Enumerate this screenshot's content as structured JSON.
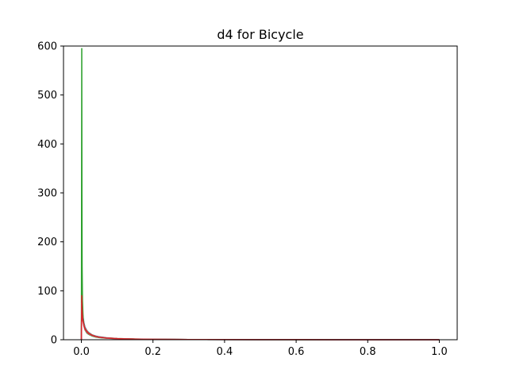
{
  "chart_data": {
    "type": "line",
    "title": "d4 for Bicycle",
    "xlabel": "",
    "ylabel": "",
    "xlim": [
      -0.05,
      1.05
    ],
    "ylim": [
      0,
      600
    ],
    "xticks": [
      0.0,
      0.2,
      0.4,
      0.6,
      0.8,
      1.0
    ],
    "xtick_labels": [
      "0.0",
      "0.2",
      "0.4",
      "0.6",
      "0.8",
      "1.0"
    ],
    "yticks": [
      0,
      100,
      200,
      300,
      400,
      500,
      600
    ],
    "ytick_labels": [
      "0",
      "100",
      "200",
      "300",
      "400",
      "500",
      "600"
    ],
    "grid": false,
    "legend": "none",
    "series": [
      {
        "color": "#1f77b4",
        "x": [
          0.0,
          0.001,
          0.002,
          0.004,
          0.007,
          0.01,
          0.015,
          0.02,
          0.03,
          0.04,
          0.05,
          0.07,
          0.1,
          0.15,
          0.2,
          0.3,
          0.5,
          0.7,
          1.0
        ],
        "y": [
          0,
          130,
          80,
          50,
          35,
          26,
          19,
          15,
          10,
          7.5,
          6,
          4,
          2.5,
          1.5,
          1,
          0.5,
          0.2,
          0.1,
          0.05
        ]
      },
      {
        "color": "#ff7f0e",
        "x": [
          0.0,
          0.001,
          0.002,
          0.004,
          0.007,
          0.01,
          0.015,
          0.02,
          0.03,
          0.04,
          0.05,
          0.07,
          0.1,
          0.15,
          0.2,
          0.3,
          0.5,
          0.7,
          1.0
        ],
        "y": [
          0,
          110,
          70,
          45,
          32,
          24,
          18,
          14,
          9.5,
          7,
          5.5,
          3.8,
          2.4,
          1.4,
          0.9,
          0.45,
          0.2,
          0.1,
          0.05
        ]
      },
      {
        "color": "#9467bd",
        "x": [
          0.0,
          0.001,
          0.002,
          0.004,
          0.007,
          0.01,
          0.015,
          0.02,
          0.03,
          0.04,
          0.05,
          0.07,
          0.1,
          0.15,
          0.2,
          0.3,
          0.5,
          0.7,
          1.0
        ],
        "y": [
          0,
          100,
          65,
          42,
          30,
          23,
          17,
          13,
          9,
          6.8,
          5.2,
          3.6,
          2.3,
          1.3,
          0.85,
          0.4,
          0.18,
          0.09,
          0.04
        ]
      },
      {
        "color": "#8c564b",
        "x": [
          0.0,
          0.001,
          0.002,
          0.004,
          0.007,
          0.01,
          0.015,
          0.02,
          0.03,
          0.04,
          0.05,
          0.07,
          0.1,
          0.15,
          0.2,
          0.3,
          0.5,
          0.7,
          1.0
        ],
        "y": [
          0,
          95,
          62,
          40,
          29,
          22,
          16.5,
          12.5,
          8.8,
          6.5,
          5,
          3.5,
          2.2,
          1.3,
          0.8,
          0.4,
          0.17,
          0.08,
          0.04
        ]
      },
      {
        "color": "#2ca02c",
        "x": [
          0.0,
          0.0005,
          0.001,
          0.0015,
          0.002,
          0.003,
          0.005,
          0.007,
          0.01,
          0.015,
          0.02,
          0.03,
          0.04,
          0.05,
          0.07,
          0.1,
          0.15,
          0.2,
          0.3,
          0.5,
          0.7,
          1.0
        ],
        "y": [
          0,
          260,
          595,
          300,
          150,
          80,
          40,
          28,
          20,
          14,
          11,
          7.5,
          5.5,
          4.2,
          3,
          2,
          1.2,
          0.8,
          0.4,
          0.15,
          0.07,
          0.03
        ]
      },
      {
        "color": "#e377c2",
        "x": [
          0.0,
          0.001,
          0.002,
          0.004,
          0.007,
          0.01,
          0.015,
          0.02,
          0.03,
          0.04,
          0.05,
          0.07,
          0.1,
          0.15,
          0.2,
          0.3,
          0.5,
          0.7,
          1.0
        ],
        "y": [
          0,
          75,
          55,
          38,
          28,
          21,
          15.5,
          12,
          8.5,
          6.2,
          4.8,
          3.3,
          2.1,
          1.2,
          0.75,
          0.38,
          0.16,
          0.08,
          0.04
        ]
      },
      {
        "color": "#d62728",
        "x": [
          0.0,
          0.001,
          0.002,
          0.004,
          0.007,
          0.01,
          0.015,
          0.02,
          0.03,
          0.04,
          0.05,
          0.07,
          0.1,
          0.15,
          0.2,
          0.3,
          0.5,
          0.7,
          1.0
        ],
        "y": [
          0,
          90,
          60,
          40,
          29,
          22,
          16.5,
          12.8,
          9,
          6.6,
          5.1,
          3.5,
          2.2,
          1.3,
          0.8,
          0.4,
          0.17,
          0.08,
          0.04
        ]
      }
    ]
  }
}
